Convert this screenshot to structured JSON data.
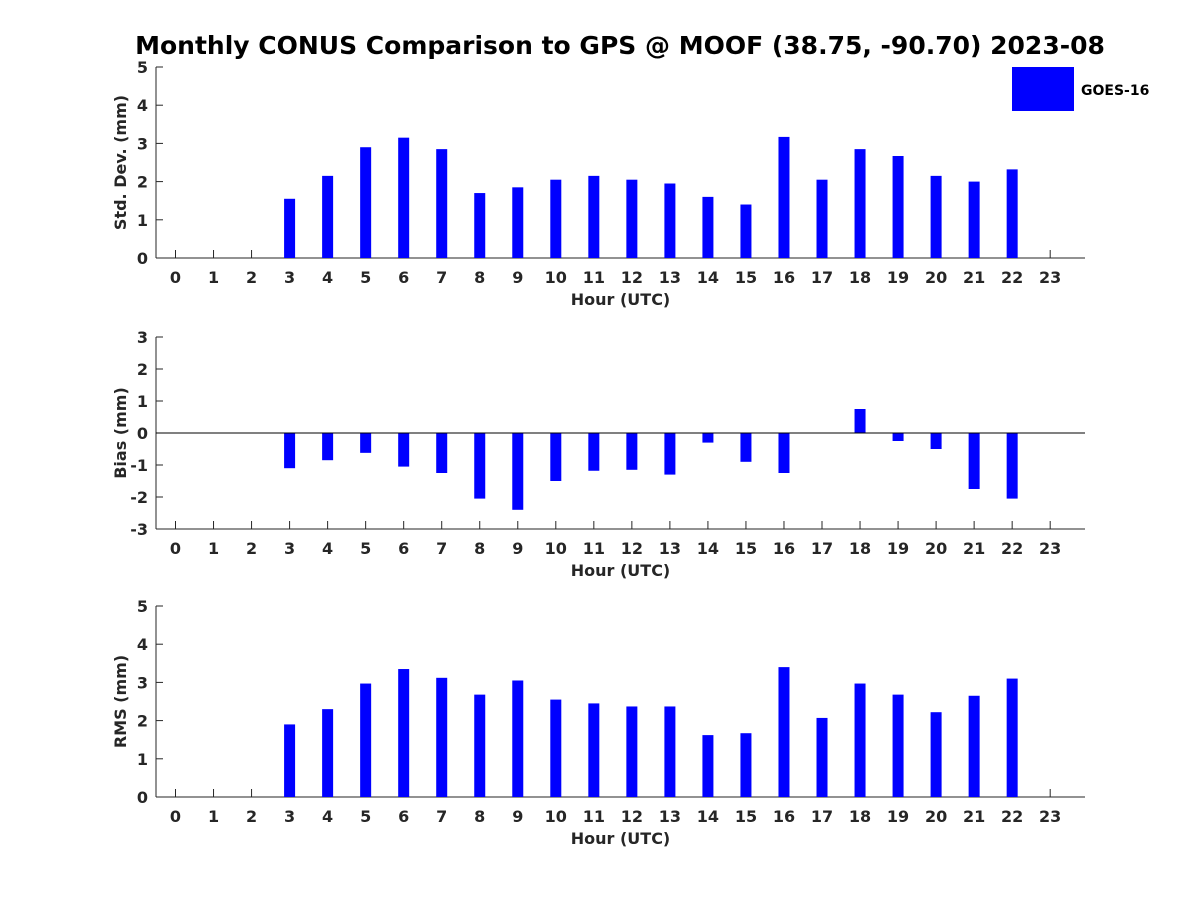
{
  "figure_title": "Monthly CONUS Comparison to GPS @ MOOF (38.75, -90.70) 2023-08",
  "bar_color": "#0000ff",
  "chart_data": [
    {
      "type": "bar",
      "title": "Monthly CONUS Comparison to GPS @ MOOF (38.75, -90.70) 2023-08",
      "xlabel": "Hour (UTC)",
      "ylabel": "Std. Dev. (mm)",
      "ylim": [
        0,
        5
      ],
      "yticks": [
        "0",
        "1",
        "2",
        "3",
        "4",
        "5"
      ],
      "categories": [
        "0",
        "1",
        "2",
        "3",
        "4",
        "5",
        "6",
        "7",
        "8",
        "9",
        "10",
        "11",
        "12",
        "13",
        "14",
        "15",
        "16",
        "17",
        "18",
        "19",
        "20",
        "21",
        "22",
        "23"
      ],
      "series": [
        {
          "name": "GOES-16",
          "values": [
            null,
            null,
            null,
            1.55,
            2.15,
            2.9,
            3.15,
            2.85,
            1.7,
            1.85,
            2.05,
            2.15,
            2.05,
            1.95,
            1.6,
            1.4,
            3.17,
            2.05,
            2.85,
            2.67,
            2.15,
            2.0,
            2.32,
            null
          ]
        }
      ],
      "legend": {
        "position": "top-right",
        "entries": [
          "GOES-16"
        ]
      },
      "grid": false
    },
    {
      "type": "bar",
      "xlabel": "Hour (UTC)",
      "ylabel": "Bias (mm)",
      "ylim": [
        -3,
        3
      ],
      "yticks": [
        "-3",
        "-2",
        "-1",
        "0",
        "1",
        "2",
        "3"
      ],
      "categories": [
        "0",
        "1",
        "2",
        "3",
        "4",
        "5",
        "6",
        "7",
        "8",
        "9",
        "10",
        "11",
        "12",
        "13",
        "14",
        "15",
        "16",
        "17",
        "18",
        "19",
        "20",
        "21",
        "22",
        "23"
      ],
      "series": [
        {
          "name": "GOES-16",
          "values": [
            null,
            null,
            null,
            -1.1,
            -0.85,
            -0.62,
            -1.05,
            -1.25,
            -2.05,
            -2.4,
            -1.5,
            -1.18,
            -1.15,
            -1.3,
            -0.3,
            -0.9,
            -1.25,
            0.0,
            0.75,
            -0.25,
            -0.5,
            -1.75,
            -2.05,
            null
          ]
        }
      ],
      "zero_line": true,
      "grid": false
    },
    {
      "type": "bar",
      "xlabel": "Hour (UTC)",
      "ylabel": "RMS (mm)",
      "ylim": [
        0,
        5
      ],
      "yticks": [
        "0",
        "1",
        "2",
        "3",
        "4",
        "5"
      ],
      "categories": [
        "0",
        "1",
        "2",
        "3",
        "4",
        "5",
        "6",
        "7",
        "8",
        "9",
        "10",
        "11",
        "12",
        "13",
        "14",
        "15",
        "16",
        "17",
        "18",
        "19",
        "20",
        "21",
        "22",
        "23"
      ],
      "series": [
        {
          "name": "GOES-16",
          "values": [
            null,
            null,
            null,
            1.9,
            2.3,
            2.97,
            3.35,
            3.12,
            2.68,
            3.05,
            2.55,
            2.45,
            2.37,
            2.37,
            1.62,
            1.67,
            3.4,
            2.07,
            2.97,
            2.68,
            2.22,
            2.65,
            3.1,
            null
          ]
        }
      ],
      "grid": false
    }
  ]
}
